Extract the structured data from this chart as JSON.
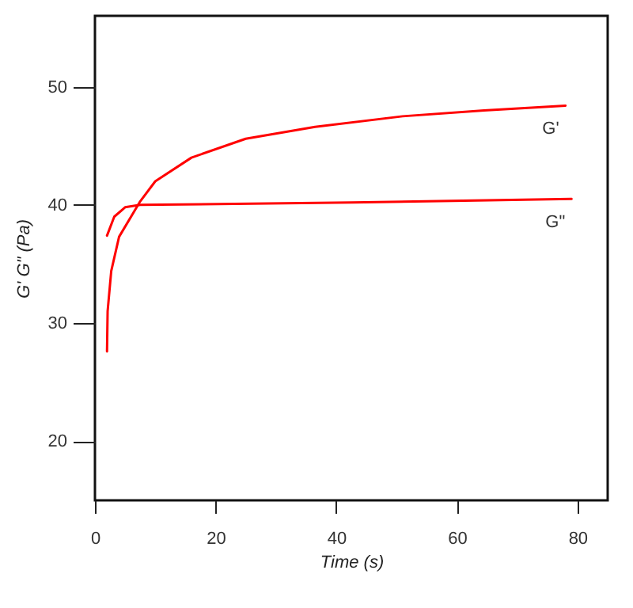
{
  "chart_data": {
    "type": "line",
    "xlabel": "Time (s)",
    "ylabel": "G' G\" (Pa)",
    "xlim": [
      0,
      85
    ],
    "xticks": [
      0,
      20,
      40,
      60,
      80
    ],
    "ylim": [
      15,
      56
    ],
    "yticks": [
      20,
      30,
      40,
      50
    ],
    "grid": false,
    "legend": false,
    "marker": "none",
    "line_style": "solid",
    "series": [
      {
        "name": "G'",
        "color": "#ff0000",
        "x": [
          2,
          2.1,
          2.7,
          4,
          7.5,
          10,
          16,
          25,
          36.5,
          51,
          64.5,
          78
        ],
        "values": [
          27.6,
          31,
          34.4,
          37.3,
          40.3,
          42,
          44,
          45.6,
          46.6,
          47.5,
          48,
          48.4
        ]
      },
      {
        "name": "G\"",
        "color": "#ff0000",
        "x": [
          2,
          3.2,
          5,
          7.5,
          42.6,
          79
        ],
        "values": [
          37.4,
          39,
          39.8,
          40,
          40.2,
          40.5
        ]
      }
    ]
  }
}
